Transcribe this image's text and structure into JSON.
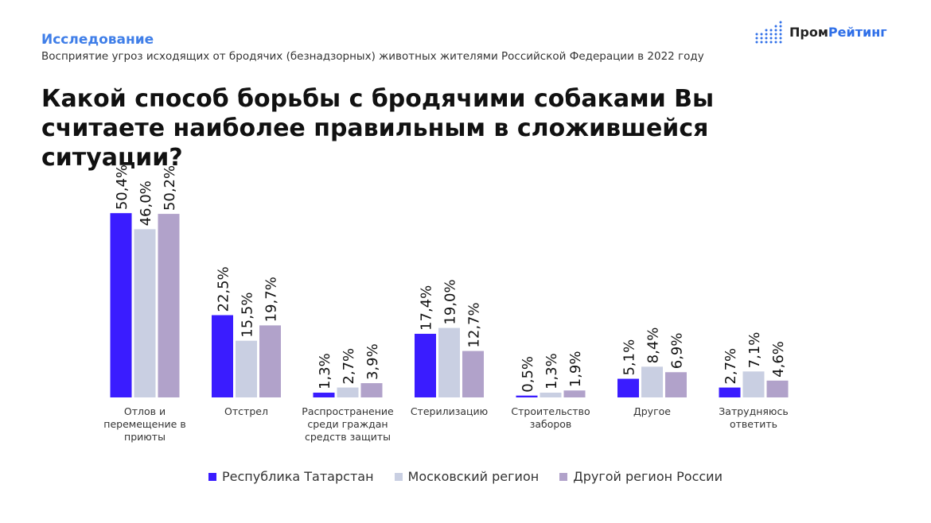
{
  "header": {
    "kicker": "Исследование",
    "subtitle": "Восприятие угроз исходящих от бродячих (безнадзорных) животных жителями Российской Федерации в 2022 году",
    "logo_part1": "Пром",
    "logo_part2": "Рейтинг"
  },
  "chart_data": {
    "type": "bar",
    "title": "Какой способ борьбы с бродячими собаками Вы считаете наиболее правильным в сложившейся ситуации?",
    "categories": [
      [
        "Отлов и",
        "перемещение в",
        "приюты"
      ],
      [
        "Отстрел"
      ],
      [
        "Распространение",
        "среди граждан",
        "средств защиты"
      ],
      [
        "Стерилизацию"
      ],
      [
        "Строительство",
        "заборов"
      ],
      [
        "Другое"
      ],
      [
        "Затрудняюсь",
        "ответить"
      ]
    ],
    "series": [
      {
        "name": "Республика Татарстан",
        "color": "#3a1cff",
        "values": [
          50.4,
          22.5,
          1.3,
          17.4,
          0.5,
          5.1,
          2.7
        ],
        "labels": [
          "50,4%",
          "22,5%",
          "1,3%",
          "17,4%",
          "0,5%",
          "5,1%",
          "2,7%"
        ]
      },
      {
        "name": "Московский регион",
        "color": "#c9cfe2",
        "values": [
          46.0,
          15.5,
          2.7,
          19.0,
          1.3,
          8.4,
          7.1
        ],
        "labels": [
          "46,0%",
          "15,5%",
          "2,7%",
          "19,0%",
          "1,3%",
          "8,4%",
          "7,1%"
        ]
      },
      {
        "name": "Другой регион России",
        "color": "#b1a2ca",
        "values": [
          50.2,
          19.7,
          3.9,
          12.7,
          1.9,
          6.9,
          4.6
        ],
        "labels": [
          "50,2%",
          "19,7%",
          "3,9%",
          "12,7%",
          "1,9%",
          "6,9%",
          "4,6%"
        ]
      }
    ],
    "xlabel": "",
    "ylabel": "",
    "ylim": [
      0,
      55
    ],
    "grid": false,
    "legend": "bottom"
  }
}
